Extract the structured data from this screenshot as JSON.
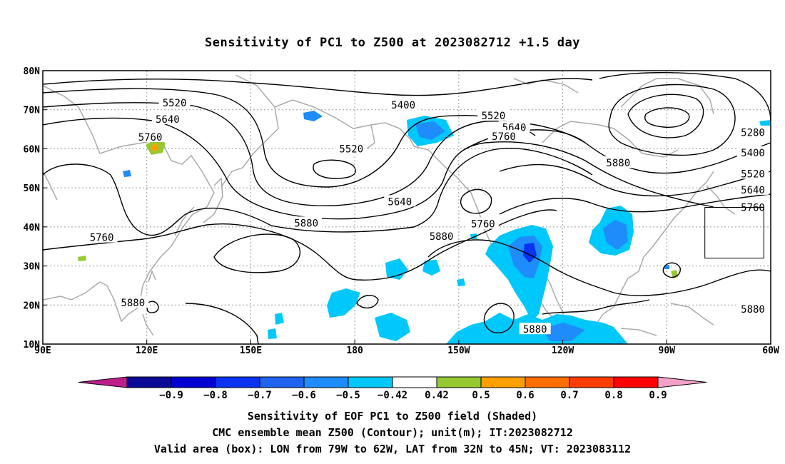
{
  "title": "Sensitivity of PC1 to Z500 at 2023082712 +1.5 day",
  "map": {
    "lon_range": [
      90,
      300
    ],
    "lat_range": [
      10,
      80
    ],
    "lon_ticks": [
      {
        "value": 90,
        "label": "90E"
      },
      {
        "value": 120,
        "label": "120E"
      },
      {
        "value": 150,
        "label": "150E"
      },
      {
        "value": 180,
        "label": "180"
      },
      {
        "value": 210,
        "label": "150W"
      },
      {
        "value": 240,
        "label": "120W"
      },
      {
        "value": 270,
        "label": "90W"
      },
      {
        "value": 300,
        "label": "60W"
      }
    ],
    "lat_ticks": [
      {
        "value": 10,
        "label": "10N"
      },
      {
        "value": 20,
        "label": "20N"
      },
      {
        "value": 30,
        "label": "30N"
      },
      {
        "value": 40,
        "label": "40N"
      },
      {
        "value": 50,
        "label": "50N"
      },
      {
        "value": 60,
        "label": "60N"
      },
      {
        "value": 70,
        "label": "70N"
      },
      {
        "value": 80,
        "label": "80N"
      }
    ],
    "grid": "dotted",
    "valid_box": {
      "lon_min": 281,
      "lon_max": 298,
      "lat_min": 32,
      "lat_max": 45
    },
    "contour_labels": [
      {
        "text": "5520",
        "lon": 128,
        "lat": 71.8
      },
      {
        "text": "5400",
        "lon": 194,
        "lat": 71.2
      },
      {
        "text": "5640",
        "lon": 126,
        "lat": 67.6
      },
      {
        "text": "5520",
        "lon": 220,
        "lat": 68.5
      },
      {
        "text": "5640",
        "lon": 226,
        "lat": 65.5
      },
      {
        "text": "5760",
        "lon": 223,
        "lat": 63.2
      },
      {
        "text": "5760",
        "lon": 121,
        "lat": 63.0
      },
      {
        "text": "5520",
        "lon": 179,
        "lat": 60.0
      },
      {
        "text": "5280",
        "lon": 353,
        "lat": 64.2
      },
      {
        "text": "5400",
        "lon": 350,
        "lat": 59.0
      },
      {
        "text": "5880",
        "lon": 256,
        "lat": 56.4
      },
      {
        "text": "5520",
        "lon": 351,
        "lat": 53.6
      },
      {
        "text": "5640",
        "lon": 350,
        "lat": 49.5
      },
      {
        "text": "5640",
        "lon": 193,
        "lat": 46.5
      },
      {
        "text": "5760",
        "lon": 348,
        "lat": 45.0
      },
      {
        "text": "5880",
        "lon": 166,
        "lat": 41.0
      },
      {
        "text": "5760",
        "lon": 217,
        "lat": 40.8
      },
      {
        "text": "5760",
        "lon": 107,
        "lat": 37.3
      },
      {
        "text": "5880",
        "lon": 205,
        "lat": 37.6
      },
      {
        "text": "5880",
        "lon": 116,
        "lat": 20.6
      },
      {
        "text": "5880",
        "lon": 349,
        "lat": 19.0
      },
      {
        "text": "5880",
        "lon": 232,
        "lat": 13.8
      }
    ]
  },
  "colorbar": {
    "colors": [
      "#c01d8c",
      "#0a0a96",
      "#0000d2",
      "#0a32f0",
      "#1e64f0",
      "#1e8cfa",
      "#00c8fa",
      "#ffffff",
      "#96c832",
      "#ffa000",
      "#ff6e00",
      "#ff3c00",
      "#ff0000",
      "#f5a0c8"
    ],
    "labels": [
      "-0.9",
      "-0.8",
      "-0.7",
      "-0.6",
      "-0.5",
      "-0.42",
      "0.42",
      "0.5",
      "0.6",
      "0.7",
      "0.8",
      "0.9"
    ]
  },
  "captions": [
    "Sensitivity of EOF PC1 to Z500 field (Shaded)",
    "CMC ensemble mean Z500 (Contour); unit(m); IT:2023082712",
    "Valid area (box): LON from 79W to 62W, LAT from 32N to 45N; VT: 2023083112"
  ]
}
